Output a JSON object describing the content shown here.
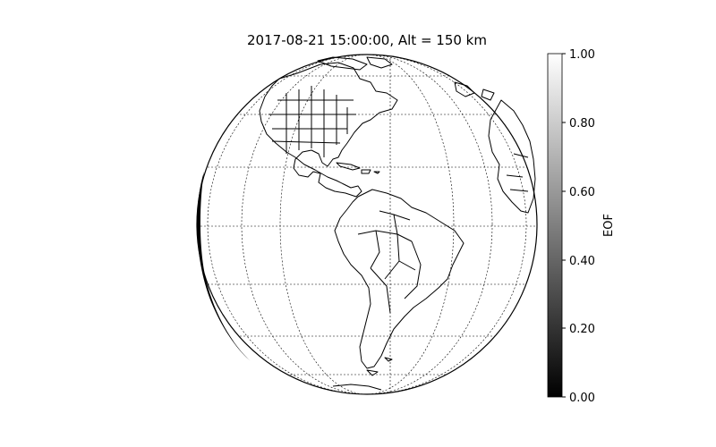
{
  "title": "2017-08-21 15:00:00, Alt = 150 km",
  "colorbar": {
    "label": "EOF",
    "ticks": [
      "0.00",
      "0.20",
      "0.40",
      "0.60",
      "0.80",
      "1.00"
    ],
    "range": [
      0,
      1
    ],
    "colormap": "gray"
  },
  "map": {
    "projection": "orthographic",
    "region": "Americas",
    "graticule": "dashed",
    "features": [
      "coastlines",
      "country borders",
      "US state borders",
      "Canadian province borders"
    ]
  },
  "colors": {
    "background": "#ffffff",
    "line": "#000000"
  }
}
